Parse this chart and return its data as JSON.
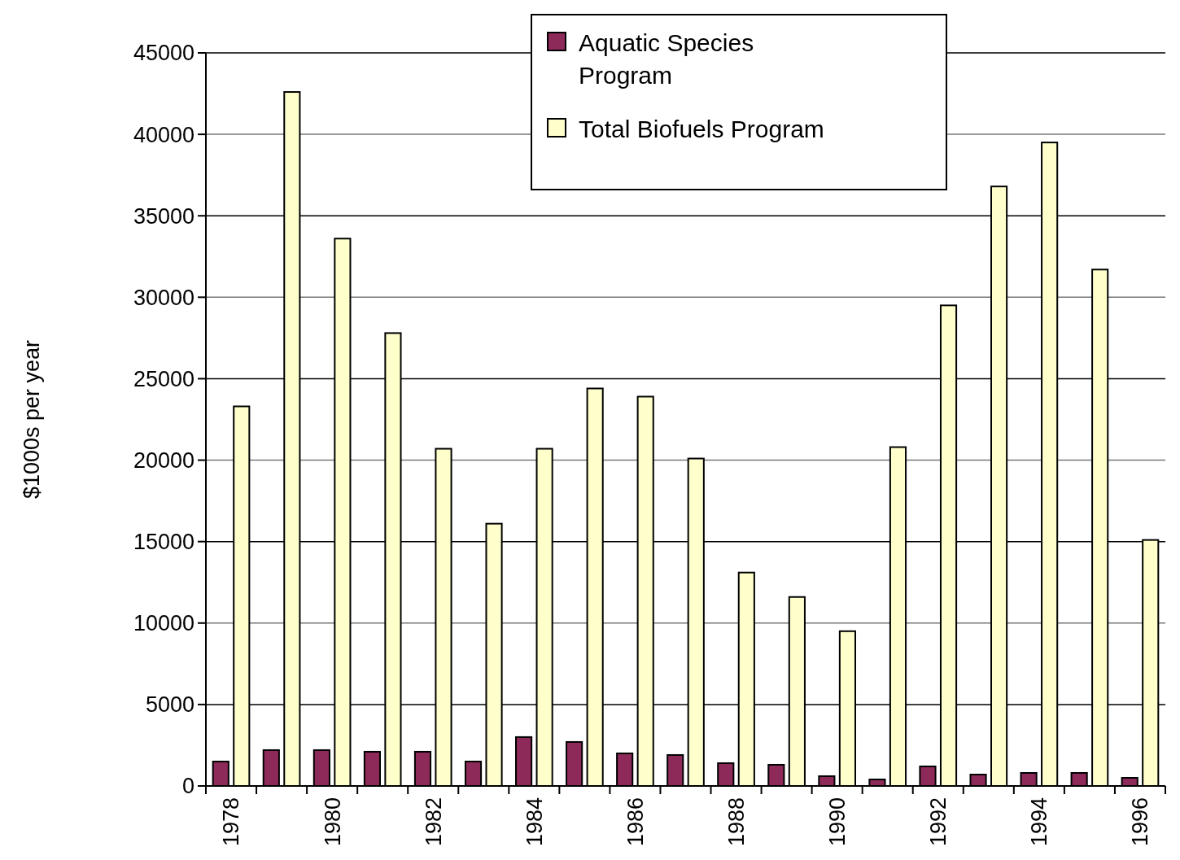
{
  "chart_data": {
    "type": "bar",
    "ylabel": "$1000s per year",
    "categories": [
      "1978",
      null,
      "1980",
      null,
      "1982",
      null,
      "1984",
      null,
      "1986",
      null,
      "1988",
      null,
      "1990",
      null,
      "1992",
      null,
      "1994",
      null,
      "1996"
    ],
    "series": [
      {
        "name": "Aquatic Species Program",
        "color": "#8e2a5a",
        "values": [
          1500,
          2200,
          2200,
          2100,
          2100,
          1500,
          3000,
          2700,
          2000,
          1900,
          1400,
          1300,
          600,
          400,
          1200,
          700,
          800,
          800,
          500
        ]
      },
      {
        "name": "Total Biofuels Program",
        "color": "#ffffcc",
        "values": [
          23300,
          42600,
          33600,
          27800,
          20700,
          16100,
          20700,
          24400,
          23900,
          20100,
          13100,
          11600,
          9500,
          20800,
          29500,
          36800,
          39500,
          31700,
          15100
        ]
      }
    ],
    "ylim": [
      0,
      45000
    ],
    "yticks": [
      0,
      5000,
      10000,
      15000,
      20000,
      25000,
      30000,
      35000,
      40000,
      45000
    ],
    "grid": "y",
    "legend": "top right"
  }
}
